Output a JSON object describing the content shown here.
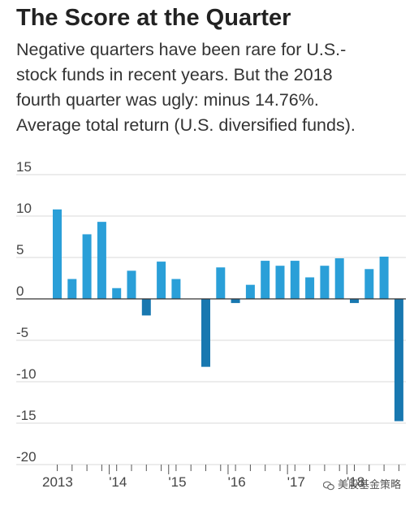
{
  "headline": "The Score at the Quarter",
  "dek_lines": [
    "Negative quarters have been rare for U.S.-",
    "stock funds in recent years. But the 2018",
    "fourth quarter was ugly: minus 14.76%.",
    "Average total return (U.S. diversified funds)."
  ],
  "watermark": "美股基金策略",
  "chart_data": {
    "type": "bar",
    "title": "",
    "xlabel": "",
    "ylabel": "",
    "ylim": [
      -20,
      15
    ],
    "yticks": [
      15,
      10,
      5,
      0,
      -5,
      -10,
      -15,
      -20
    ],
    "ytick_labels": [
      "15",
      "10",
      "5",
      "0",
      "-5",
      "-10",
      "-15",
      "-20"
    ],
    "grid": true,
    "x_tick_labels": [
      "2013",
      "'14",
      "'15",
      "'16",
      "'17",
      "'18"
    ],
    "categories": [
      "2013 Q1",
      "2013 Q2",
      "2013 Q3",
      "2013 Q4",
      "2014 Q1",
      "2014 Q2",
      "2014 Q3",
      "2014 Q4",
      "2015 Q1",
      "2015 Q2",
      "2015 Q3",
      "2015 Q4",
      "2016 Q1",
      "2016 Q2",
      "2016 Q3",
      "2016 Q4",
      "2017 Q1",
      "2017 Q2",
      "2017 Q3",
      "2017 Q4",
      "2018 Q1",
      "2018 Q2",
      "2018 Q3",
      "2018 Q4"
    ],
    "values": [
      10.8,
      2.4,
      7.8,
      9.3,
      1.3,
      3.4,
      -2.0,
      4.5,
      2.4,
      null,
      -8.2,
      3.8,
      -0.5,
      1.7,
      4.6,
      4.0,
      4.6,
      2.6,
      4.0,
      4.9,
      -0.5,
      3.6,
      5.1,
      -14.76
    ],
    "colors": {
      "positive": "#2a9fd8",
      "negative": "#1878b0",
      "grid": "#d9d9d9",
      "axis": "#333333"
    }
  }
}
